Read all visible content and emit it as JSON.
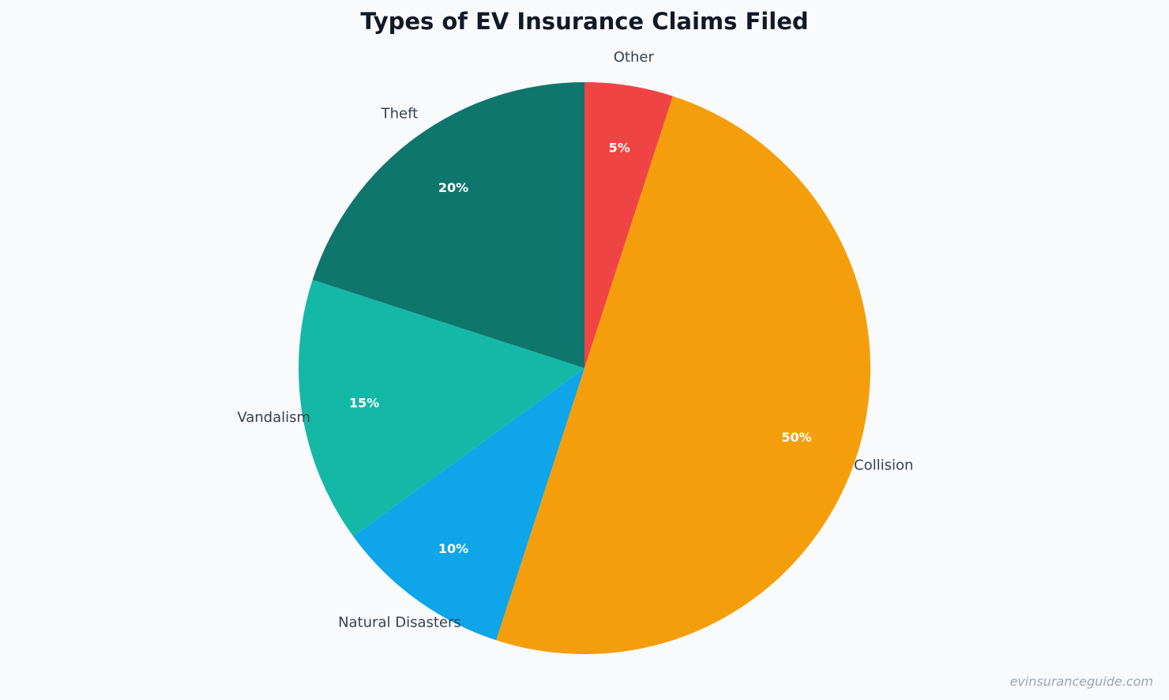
{
  "chart_data": {
    "type": "pie",
    "title": "Types of EV Insurance Claims Filed",
    "slices": [
      {
        "label": "Other",
        "value": 5,
        "percent_label": "5%",
        "color": "#ef4444"
      },
      {
        "label": "Collision",
        "value": 50,
        "percent_label": "50%",
        "color": "#f59e0b"
      },
      {
        "label": "Natural Disasters",
        "value": 10,
        "percent_label": "10%",
        "color": "#0ea5e9"
      },
      {
        "label": "Vandalism",
        "value": 15,
        "percent_label": "15%",
        "color": "#14b8a6"
      },
      {
        "label": "Theft",
        "value": 20,
        "percent_label": "20%",
        "color": "#0f766e"
      }
    ],
    "start": "top",
    "direction": "clockwise",
    "legend": "none"
  },
  "watermark": "evinsuranceguide.com"
}
